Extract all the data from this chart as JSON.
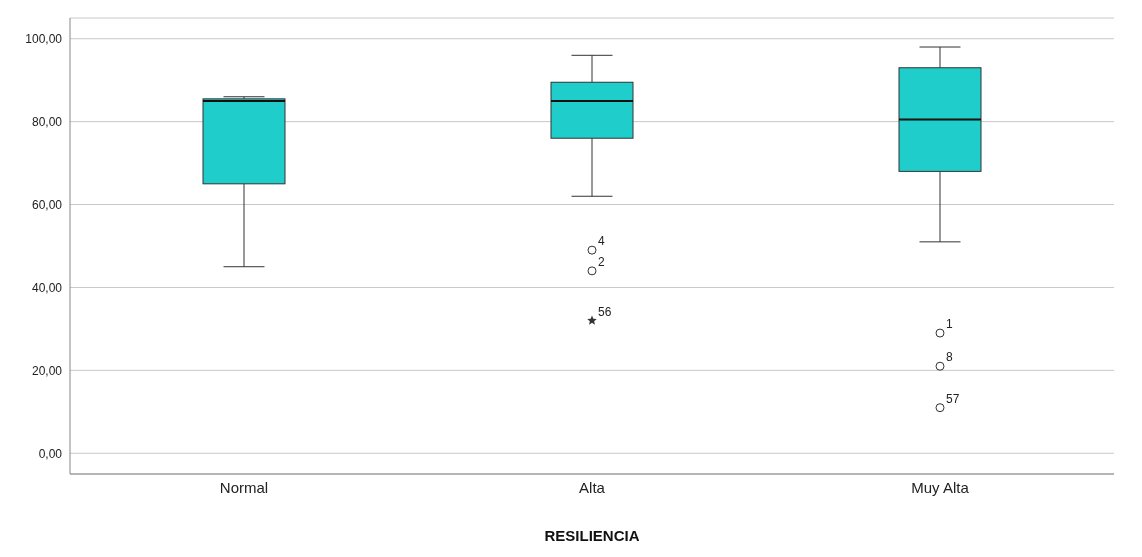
{
  "chart_data": {
    "type": "box",
    "xlabel": "RESILIENCIA",
    "categories": [
      "Normal",
      "Alta",
      "Muy Alta"
    ],
    "series": [
      {
        "type": "box",
        "color": "#1fcecb",
        "boxes": [
          {
            "low": 45,
            "q1": 65,
            "median": 85,
            "q3": 85.5,
            "high": 86
          },
          {
            "low": 62,
            "q1": 76,
            "median": 85,
            "q3": 89.5,
            "high": 96
          },
          {
            "low": 51,
            "q1": 68,
            "median": 80.5,
            "q3": 93,
            "high": 98
          }
        ]
      },
      {
        "type": "scatter",
        "marker": "circle",
        "color": "#333333",
        "x": [
          "Alta",
          "Alta",
          "Muy Alta",
          "Muy Alta",
          "Muy Alta"
        ],
        "values": [
          49,
          44,
          29,
          21,
          11
        ]
      },
      {
        "type": "scatter",
        "marker": "star",
        "color": "#333333",
        "x": [
          "Alta"
        ],
        "values": [
          32
        ]
      }
    ],
    "ylim": [
      -5,
      105
    ],
    "yticks": [
      {
        "value": 0,
        "label": "0,00"
      },
      {
        "value": 20,
        "label": "20,00"
      },
      {
        "value": 40,
        "label": "40,00"
      },
      {
        "value": 60,
        "label": "60,00"
      },
      {
        "value": 80,
        "label": "80,00"
      },
      {
        "value": 100,
        "label": "100,00"
      }
    ],
    "grid": "y",
    "annotations": [
      {
        "text": "4",
        "x": "Alta",
        "y": 49
      },
      {
        "text": "2",
        "x": "Alta",
        "y": 44
      },
      {
        "text": "56",
        "x": "Alta",
        "y": 32
      },
      {
        "text": "1",
        "x": "Muy Alta",
        "y": 29
      },
      {
        "text": "8",
        "x": "Muy Alta",
        "y": 21
      },
      {
        "text": "57",
        "x": "Muy Alta",
        "y": 11
      }
    ]
  }
}
